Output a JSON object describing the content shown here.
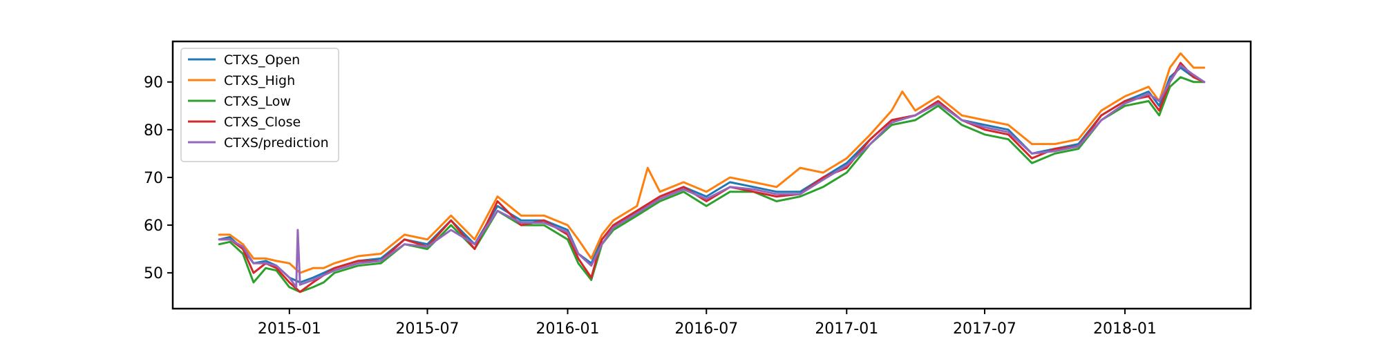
{
  "chart_data": {
    "type": "line",
    "title": "",
    "xlabel": "",
    "ylabel": "",
    "xlim": [
      "2014-08-01",
      "2018-06-15"
    ],
    "ylim": [
      42.5,
      98.5
    ],
    "x_ticks": [
      "2015-01",
      "2015-07",
      "2016-01",
      "2016-07",
      "2017-01",
      "2017-07",
      "2018-01"
    ],
    "y_ticks": [
      50,
      60,
      70,
      80,
      90
    ],
    "grid": false,
    "legend_position": "upper-left",
    "series": [
      {
        "name": "CTXS_Open",
        "color": "#1f77b4",
        "x": [
          "2014-10-01",
          "2014-10-15",
          "2014-11-01",
          "2014-11-15",
          "2014-12-01",
          "2014-12-15",
          "2015-01-01",
          "2015-01-15",
          "2015-02-01",
          "2015-02-15",
          "2015-03-01",
          "2015-04-01",
          "2015-05-01",
          "2015-06-01",
          "2015-07-01",
          "2015-08-01",
          "2015-09-01",
          "2015-10-01",
          "2015-11-01",
          "2015-12-01",
          "2016-01-01",
          "2016-01-15",
          "2016-02-01",
          "2016-02-15",
          "2016-03-01",
          "2016-04-01",
          "2016-05-01",
          "2016-06-01",
          "2016-07-01",
          "2016-08-01",
          "2016-09-01",
          "2016-10-01",
          "2016-11-01",
          "2016-12-01",
          "2017-01-01",
          "2017-02-01",
          "2017-03-01",
          "2017-04-01",
          "2017-05-01",
          "2017-06-01",
          "2017-07-01",
          "2017-08-01",
          "2017-09-01",
          "2017-10-01",
          "2017-11-01",
          "2017-12-01",
          "2018-01-01",
          "2018-02-01",
          "2018-02-15",
          "2018-03-01",
          "2018-03-15",
          "2018-04-01",
          "2018-04-15"
        ],
        "values": [
          57,
          57.5,
          55,
          52,
          52.5,
          51.5,
          49,
          48,
          49,
          50,
          51,
          52.5,
          53,
          57,
          56,
          61,
          56,
          64,
          61,
          61,
          59,
          54,
          52,
          57,
          60,
          63,
          66,
          68,
          66,
          69,
          68,
          67,
          67,
          70,
          73,
          78,
          82,
          83,
          86,
          82,
          81,
          80,
          75,
          76,
          77,
          83,
          86,
          88,
          85,
          91,
          93,
          91,
          90
        ]
      },
      {
        "name": "CTXS_High",
        "color": "#ff7f0e",
        "x": [
          "2014-10-01",
          "2014-10-15",
          "2014-11-01",
          "2014-11-15",
          "2014-12-01",
          "2014-12-15",
          "2015-01-01",
          "2015-01-15",
          "2015-02-01",
          "2015-02-15",
          "2015-03-01",
          "2015-04-01",
          "2015-05-01",
          "2015-06-01",
          "2015-07-01",
          "2015-08-01",
          "2015-09-01",
          "2015-10-01",
          "2015-11-01",
          "2015-12-01",
          "2016-01-01",
          "2016-01-15",
          "2016-02-01",
          "2016-02-15",
          "2016-03-01",
          "2016-04-01",
          "2016-04-15",
          "2016-05-01",
          "2016-06-01",
          "2016-07-01",
          "2016-08-01",
          "2016-09-01",
          "2016-10-01",
          "2016-11-01",
          "2016-12-01",
          "2017-01-01",
          "2017-02-01",
          "2017-03-01",
          "2017-03-15",
          "2017-04-01",
          "2017-05-01",
          "2017-06-01",
          "2017-07-01",
          "2017-08-01",
          "2017-09-01",
          "2017-10-01",
          "2017-11-01",
          "2017-12-01",
          "2018-01-01",
          "2018-02-01",
          "2018-02-15",
          "2018-03-01",
          "2018-03-15",
          "2018-04-01",
          "2018-04-15"
        ],
        "values": [
          58,
          58,
          56,
          53,
          53,
          52.5,
          52,
          50,
          51,
          51,
          52,
          53.5,
          54,
          58,
          57,
          62,
          57,
          66,
          62,
          62,
          60,
          57,
          53,
          58,
          61,
          64,
          72,
          67,
          69,
          67,
          70,
          69,
          68,
          72,
          71,
          74,
          79,
          84,
          88,
          84,
          87,
          83,
          82,
          81,
          77,
          77,
          78,
          84,
          87,
          89,
          86,
          93,
          96,
          93,
          93
        ]
      },
      {
        "name": "CTXS_Low",
        "color": "#2ca02c",
        "x": [
          "2014-10-01",
          "2014-10-15",
          "2014-11-01",
          "2014-11-15",
          "2014-12-01",
          "2014-12-15",
          "2015-01-01",
          "2015-01-15",
          "2015-02-01",
          "2015-02-15",
          "2015-03-01",
          "2015-04-01",
          "2015-05-01",
          "2015-06-01",
          "2015-07-01",
          "2015-08-01",
          "2015-09-01",
          "2015-10-01",
          "2015-11-01",
          "2015-12-01",
          "2016-01-01",
          "2016-01-15",
          "2016-02-01",
          "2016-02-15",
          "2016-03-01",
          "2016-04-01",
          "2016-05-01",
          "2016-06-01",
          "2016-07-01",
          "2016-08-01",
          "2016-09-01",
          "2016-10-01",
          "2016-11-01",
          "2016-12-01",
          "2017-01-01",
          "2017-02-01",
          "2017-03-01",
          "2017-04-01",
          "2017-05-01",
          "2017-06-01",
          "2017-07-01",
          "2017-08-01",
          "2017-09-01",
          "2017-10-01",
          "2017-11-01",
          "2017-12-01",
          "2018-01-01",
          "2018-02-01",
          "2018-02-15",
          "2018-03-01",
          "2018-03-15",
          "2018-04-01",
          "2018-04-15"
        ],
        "values": [
          56,
          56.5,
          54,
          48,
          51,
          50.5,
          47,
          46,
          47,
          48,
          50,
          51.5,
          52,
          56,
          55,
          60,
          55,
          63,
          60,
          60,
          57,
          52,
          48.5,
          56,
          59,
          62,
          65,
          67,
          64,
          67,
          67,
          65,
          66,
          68,
          71,
          77,
          81,
          82,
          85,
          81,
          79,
          78,
          73,
          75,
          76,
          82,
          85,
          86,
          83,
          89,
          91,
          90,
          90
        ]
      },
      {
        "name": "CTXS_Close",
        "color": "#d62728",
        "x": [
          "2014-10-01",
          "2014-10-15",
          "2014-11-01",
          "2014-11-15",
          "2014-12-01",
          "2014-12-15",
          "2015-01-01",
          "2015-01-15",
          "2015-02-01",
          "2015-02-15",
          "2015-03-01",
          "2015-04-01",
          "2015-05-01",
          "2015-06-01",
          "2015-07-01",
          "2015-08-01",
          "2015-09-01",
          "2015-10-01",
          "2015-11-01",
          "2015-12-01",
          "2016-01-01",
          "2016-01-15",
          "2016-02-01",
          "2016-02-15",
          "2016-03-01",
          "2016-04-01",
          "2016-05-01",
          "2016-06-01",
          "2016-07-01",
          "2016-08-01",
          "2016-09-01",
          "2016-10-01",
          "2016-11-01",
          "2016-12-01",
          "2017-01-01",
          "2017-02-01",
          "2017-03-01",
          "2017-04-01",
          "2017-05-01",
          "2017-06-01",
          "2017-07-01",
          "2017-08-01",
          "2017-09-01",
          "2017-10-01",
          "2017-11-01",
          "2017-12-01",
          "2018-01-01",
          "2018-02-01",
          "2018-02-15",
          "2018-03-01",
          "2018-03-15",
          "2018-04-01",
          "2018-04-15"
        ],
        "values": [
          57,
          57,
          55,
          50,
          52,
          51,
          48,
          46,
          48,
          49.5,
          51,
          52.5,
          52.5,
          57,
          55.5,
          61,
          55,
          65,
          60,
          61,
          58,
          53,
          49,
          57,
          60,
          63,
          66,
          68,
          65,
          68,
          67,
          66,
          66.5,
          70,
          72,
          78,
          82,
          83,
          86,
          82,
          80,
          79,
          74,
          76,
          76.5,
          83,
          86,
          87,
          84,
          90,
          94,
          91,
          90
        ]
      },
      {
        "name": "CTXS/prediction",
        "color": "#9467bd",
        "x": [
          "2014-10-01",
          "2014-10-15",
          "2014-11-01",
          "2014-11-15",
          "2014-12-01",
          "2014-12-15",
          "2015-01-01",
          "2015-01-10",
          "2015-01-12",
          "2015-01-15",
          "2015-02-01",
          "2015-02-15",
          "2015-03-01",
          "2015-04-01",
          "2015-05-01",
          "2015-06-01",
          "2015-07-01",
          "2015-08-01",
          "2015-09-01",
          "2015-10-01",
          "2015-11-01",
          "2015-12-01",
          "2016-01-01",
          "2016-01-15",
          "2016-02-01",
          "2016-02-15",
          "2016-03-01",
          "2016-04-01",
          "2016-05-01",
          "2016-06-01",
          "2016-07-01",
          "2016-08-01",
          "2016-09-01",
          "2016-10-01",
          "2016-11-01",
          "2016-12-01",
          "2017-01-01",
          "2017-02-01",
          "2017-03-01",
          "2017-04-01",
          "2017-05-01",
          "2017-06-01",
          "2017-07-01",
          "2017-08-01",
          "2017-09-01",
          "2017-10-01",
          "2017-11-01",
          "2017-12-01",
          "2018-01-01",
          "2018-02-01",
          "2018-02-15",
          "2018-03-01",
          "2018-03-15",
          "2018-04-01",
          "2018-04-15"
        ],
        "values": [
          57,
          57,
          55.5,
          52,
          52,
          51.5,
          49,
          47,
          59,
          47.5,
          48.5,
          49.5,
          50.5,
          52,
          52.5,
          56,
          55.5,
          59,
          56,
          63,
          60.5,
          60.5,
          58.5,
          54,
          51.5,
          56,
          59.5,
          62.5,
          65.5,
          67.5,
          65.5,
          68,
          67.5,
          66.5,
          66.5,
          69.5,
          72.5,
          77,
          81.5,
          83,
          85.5,
          82,
          80.5,
          79.5,
          75,
          75.5,
          76.5,
          82,
          85.5,
          87.5,
          86,
          90,
          93.5,
          91.5,
          90
        ]
      }
    ]
  }
}
